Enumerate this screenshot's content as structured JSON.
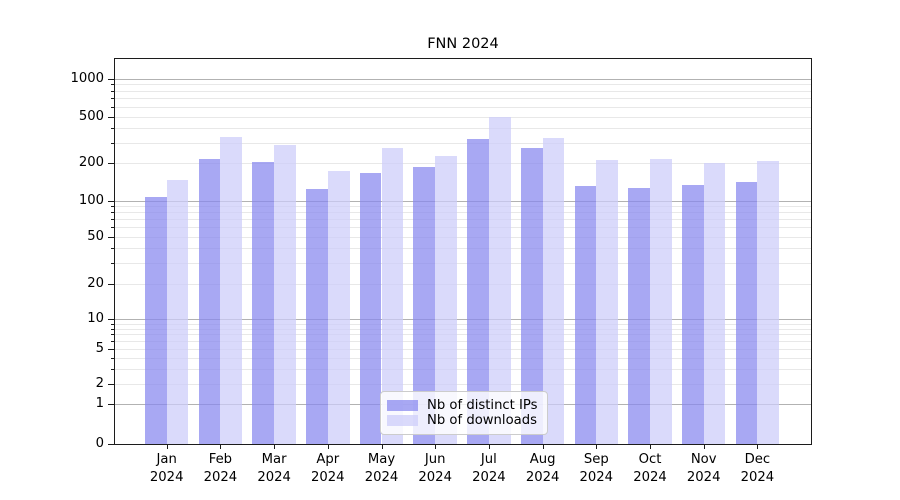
{
  "chart_data": {
    "type": "bar",
    "title": "FNN 2024",
    "categories": [
      "Jan 2024",
      "Feb 2024",
      "Mar 2024",
      "Apr 2024",
      "May 2024",
      "Jun 2024",
      "Jul 2024",
      "Aug 2024",
      "Sep 2024",
      "Oct 2024",
      "Nov 2024",
      "Dec 2024"
    ],
    "series": [
      {
        "name": "Nb of distinct IPs",
        "color": "#8888EEBA",
        "color_hex": "#a8a8f2",
        "values": [
          106,
          217,
          204,
          124,
          165,
          186,
          322,
          270,
          130,
          126,
          133,
          141
        ]
      },
      {
        "name": "Nb of downloads",
        "color": "#CCCCFABA",
        "color_hex": "#d9d9fa",
        "values": [
          147,
          334,
          288,
          171,
          272,
          229,
          500,
          327,
          212,
          218,
          200,
          208
        ]
      }
    ],
    "xlabel": "",
    "ylabel": "",
    "yscale": "symlog",
    "ylim": [
      0,
      1400
    ],
    "yticks": [
      0,
      1,
      2,
      5,
      10,
      20,
      50,
      100,
      200,
      500,
      1000
    ],
    "grid": "horizontal major and minor, no vertical",
    "legend_position": "lower center inside plot"
  },
  "colors": {
    "major_grid": "#b2b2b2",
    "minor_grid": "#e8e8e8",
    "axis": "#1c1c1c",
    "legend_border": "#cccccc",
    "background": "#ffffff"
  }
}
